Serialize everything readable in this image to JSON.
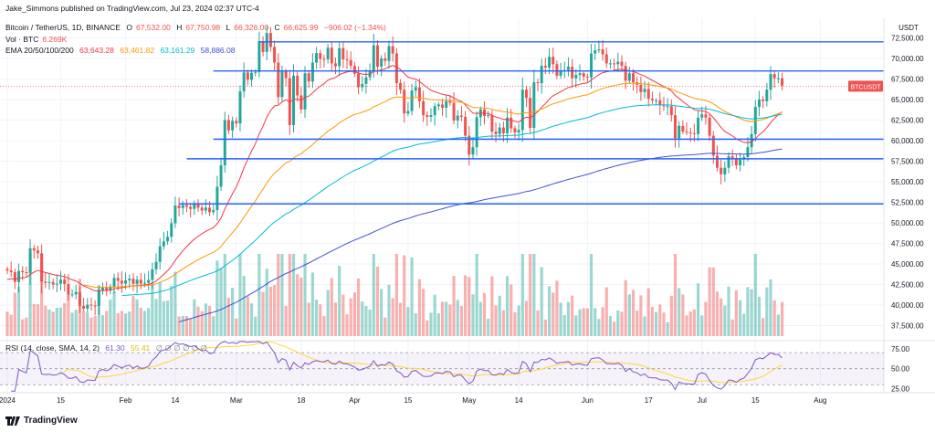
{
  "header": {
    "publisher": "Jake_Simmons published on TradingView.com, Jul 23, 2024 02:37 UTC-4",
    "symbol": "Bitcoin / TetherUS, 1D, BINANCE",
    "ohlc": {
      "o_label": "O",
      "o": "67,532.00",
      "h_label": "H",
      "h": "67,750.98",
      "l_label": "L",
      "l": "66,326.00",
      "c_label": "C",
      "c": "66,625.99",
      "change": "−906.02 (−1.34%)"
    },
    "vol_label": "Vol · BTC",
    "vol_value": "6.269K",
    "ema_label": "EMA 20/50/100/200",
    "ema_values": [
      "63,643.28",
      "63,461.82",
      "63,161.29",
      "58,886.08"
    ],
    "rsi_label": "RSI (14, close, SMA, 14, 2)",
    "rsi_values": [
      "61.30",
      "55.41"
    ],
    "rsi_na": "∅ ∅ ∅ ∅ ∅ ∅"
  },
  "footer": {
    "brand": "TradingView"
  },
  "colors": {
    "up": "#26a69a",
    "down": "#ef5350",
    "level": "#2962ff",
    "ema20": "#f23645",
    "ema50": "#ff9800",
    "ema100": "#00bcd4",
    "ema200": "#3f51d6",
    "rsi": "#7e57c2",
    "rsi_sma": "#fdd835"
  },
  "chart_data": {
    "type": "candlestick",
    "title": "Bitcoin / TetherUS, 1D, BINANCE",
    "currency": "USDT",
    "ylim": [
      35500,
      74500
    ],
    "yticks": [
      "72,500.00",
      "70,000.00",
      "67,500.00",
      "65,000.00",
      "62,500.00",
      "60,000.00",
      "57,500.00",
      "55,000.00",
      "52,500.00",
      "50,000.00",
      "47,500.00",
      "45,000.00",
      "42,500.00",
      "40,000.00",
      "37,500.00"
    ],
    "ytick_values": [
      72500,
      70000,
      67500,
      65000,
      62500,
      60000,
      57500,
      55000,
      52500,
      50000,
      47500,
      45000,
      42500,
      40000,
      37500
    ],
    "xticks": [
      {
        "label": "2024",
        "day": 0
      },
      {
        "label": "15",
        "day": 14
      },
      {
        "label": "Feb",
        "day": 31
      },
      {
        "label": "14",
        "day": 44
      },
      {
        "label": "Mar",
        "day": 60
      },
      {
        "label": "18",
        "day": 77
      },
      {
        "label": "Apr",
        "day": 91
      },
      {
        "label": "15",
        "day": 105
      },
      {
        "label": "May",
        "day": 121
      },
      {
        "label": "14",
        "day": 134
      },
      {
        "label": "Jun",
        "day": 152
      },
      {
        "label": "17",
        "day": 168
      },
      {
        "label": "Jul",
        "day": 182
      },
      {
        "label": "15",
        "day": 196
      },
      {
        "label": "Aug",
        "day": 213
      }
    ],
    "levels": [
      {
        "value": 72021.95,
        "label": "72,021.95",
        "from_day": 66
      },
      {
        "value": 68477.06,
        "label": "68,477.06",
        "from_day": 54
      },
      {
        "value": 60181.49,
        "label": "60,181.49",
        "from_day": 54
      },
      {
        "value": 57790.95,
        "label": "57,790.95",
        "from_day": 47
      },
      {
        "value": 52305.54,
        "label": "52,305.54",
        "from_day": 45
      }
    ],
    "last_price": {
      "value": 66625.99,
      "symbol": "BTCUSDT",
      "label": "66,625.99",
      "countdown": "17:22:38"
    },
    "closes": [
      44200,
      44000,
      42800,
      44150,
      44000,
      43900,
      46900,
      46650,
      46300,
      42850,
      42700,
      42800,
      42500,
      42600,
      43100,
      42550,
      41300,
      41300,
      41600,
      39900,
      39550,
      40050,
      39950,
      39900,
      41800,
      42150,
      41800,
      42250,
      43300,
      42950,
      42600,
      43000,
      43200,
      42580,
      43080,
      42620,
      42700,
      43050,
      44350,
      45250,
      47150,
      47750,
      48300,
      49950,
      52100,
      51800,
      52150,
      51950,
      51700,
      52300,
      51850,
      51500,
      51850,
      51300,
      51550,
      54400,
      57000,
      62500,
      61250,
      62400,
      62100,
      66000,
      68300,
      67400,
      68250,
      68350,
      72100,
      70800,
      73100,
      71400,
      69500,
      65300,
      68400,
      67600,
      61900,
      67900,
      65500,
      63800,
      68200,
      67200,
      69500,
      70650,
      69950,
      69900,
      71300,
      69400,
      69050,
      71250,
      69900,
      69800,
      69100,
      68150,
      66500,
      66900,
      67700,
      68400,
      71600,
      69000,
      70000,
      69700,
      71500,
      70600,
      67000,
      66200,
      63300,
      63600,
      66100,
      66500,
      64800,
      63100,
      62900,
      63100,
      64200,
      64400,
      64000,
      64800,
      64600,
      62450,
      63050,
      62900,
      60600,
      58300,
      59200,
      62850,
      63800,
      63000,
      63100,
      61100,
      60800,
      61600,
      60900,
      62800,
      61500,
      61000,
      61300,
      66200,
      65200,
      61550,
      67100,
      67000,
      69100,
      68900,
      70200,
      69300,
      67900,
      68500,
      68600,
      69000,
      67600,
      68000,
      68200,
      67800,
      67700,
      70600,
      71000,
      71100,
      70500,
      69400,
      69400,
      69300,
      69600,
      69100,
      67300,
      68200,
      67100,
      66800,
      65900,
      66300,
      65100,
      64900,
      64900,
      64300,
      64200,
      64200,
      63100,
      60300,
      61800,
      61100,
      61000,
      60900,
      60800,
      62800,
      63200,
      62800,
      60600,
      58200,
      56700,
      55900,
      56700,
      58100,
      57900,
      57000,
      57700,
      58000,
      59200,
      60800,
      64100,
      65000,
      64800,
      66200,
      68100,
      67600,
      67600,
      66700
    ],
    "indicators": {
      "ema20": 63643.28,
      "ema50": 63461.82,
      "ema100": 63161.29,
      "ema200": 58886.08
    },
    "rsi": {
      "value": 61.3,
      "sma": 55.41,
      "levels": [
        70,
        50,
        30
      ],
      "yticks": [
        "75.00",
        "50.00",
        "25.00"
      ],
      "ytick_values": [
        75,
        50,
        25
      ],
      "ylim": [
        20,
        85
      ]
    }
  }
}
